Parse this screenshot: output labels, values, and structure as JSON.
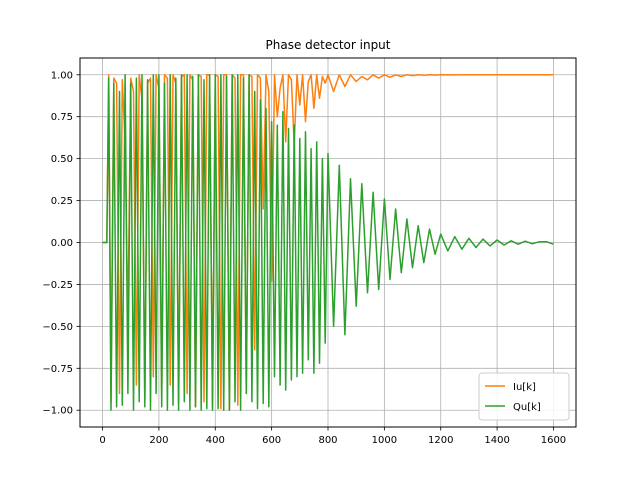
{
  "chart_data": {
    "type": "line",
    "title": "Phase detector input",
    "xlabel": "",
    "ylabel": "",
    "xlim": [
      -80,
      1680
    ],
    "ylim": [
      -1.1,
      1.1
    ],
    "xticks": [
      0,
      200,
      400,
      600,
      800,
      1000,
      1200,
      1400,
      1600
    ],
    "xtick_labels": [
      "0",
      "200",
      "400",
      "600",
      "800",
      "1000",
      "1200",
      "1400",
      "1600"
    ],
    "yticks": [
      -1.0,
      -0.75,
      -0.5,
      -0.25,
      0.0,
      0.25,
      0.5,
      0.75,
      1.0
    ],
    "ytick_labels": [
      "−1.00",
      "−0.75",
      "−0.50",
      "−0.25",
      "0.00",
      "0.25",
      "0.50",
      "0.75",
      "1.00"
    ],
    "grid": true,
    "legend_position": "lower-right",
    "series": [
      {
        "name": "Iu[k]",
        "color": "#ff7f0e",
        "x": [
          0,
          15,
          22,
          30,
          40,
          50,
          60,
          70,
          80,
          90,
          100,
          110,
          120,
          130,
          140,
          150,
          160,
          170,
          180,
          190,
          200,
          210,
          220,
          230,
          240,
          250,
          260,
          270,
          280,
          290,
          300,
          310,
          320,
          330,
          340,
          350,
          360,
          370,
          380,
          390,
          400,
          410,
          420,
          430,
          440,
          450,
          460,
          470,
          480,
          490,
          500,
          510,
          520,
          530,
          540,
          550,
          560,
          570,
          580,
          590,
          600,
          610,
          620,
          630,
          640,
          650,
          660,
          670,
          680,
          690,
          700,
          710,
          720,
          730,
          740,
          750,
          760,
          770,
          780,
          790,
          800,
          820,
          840,
          860,
          880,
          900,
          920,
          940,
          960,
          980,
          1000,
          1020,
          1040,
          1060,
          1080,
          1100,
          1120,
          1140,
          1160,
          1180,
          1200,
          1250,
          1300,
          1350,
          1400,
          1450,
          1500,
          1550,
          1600
        ],
        "y": [
          0.0,
          0.0,
          1.0,
          -0.95,
          0.98,
          0.95,
          -0.9,
          0.97,
          0.6,
          -0.5,
          0.98,
          0.9,
          -0.85,
          1.0,
          0.85,
          -0.95,
          0.95,
          0.98,
          -0.8,
          1.0,
          0.92,
          -0.9,
          1.0,
          0.98,
          -0.85,
          1.0,
          0.95,
          -0.95,
          0.99,
          1.0,
          -0.9,
          1.0,
          0.97,
          -0.98,
          1.0,
          0.99,
          -0.95,
          1.0,
          1.0,
          -0.98,
          1.0,
          0.99,
          -0.99,
          1.0,
          1.0,
          -1.0,
          1.0,
          0.98,
          -0.97,
          1.0,
          1.0,
          -0.9,
          1.0,
          0.99,
          -0.64,
          1.0,
          0.98,
          0.2,
          1.0,
          0.9,
          -0.23,
          1.0,
          0.75,
          0.92,
          1.0,
          0.6,
          1.0,
          0.97,
          0.58,
          1.0,
          0.82,
          1.0,
          0.72,
          0.96,
          1.0,
          0.8,
          1.0,
          0.86,
          0.99,
          0.95,
          1.0,
          0.9,
          1.0,
          0.93,
          1.0,
          0.96,
          0.99,
          0.97,
          1.0,
          0.98,
          1.0,
          0.985,
          1.0,
          0.99,
          1.0,
          0.995,
          1.0,
          0.997,
          1.0,
          0.998,
          1.0,
          0.999,
          1.0,
          1.0,
          1.0,
          1.0,
          1.0,
          1.0,
          1.0
        ]
      },
      {
        "name": "Qu[k]",
        "color": "#2ca02c",
        "x": [
          0,
          15,
          22,
          30,
          40,
          50,
          60,
          70,
          80,
          90,
          100,
          110,
          120,
          130,
          140,
          150,
          160,
          170,
          180,
          190,
          200,
          210,
          220,
          230,
          240,
          250,
          260,
          270,
          280,
          290,
          300,
          310,
          320,
          330,
          340,
          350,
          360,
          370,
          380,
          390,
          400,
          410,
          420,
          430,
          440,
          450,
          460,
          470,
          480,
          490,
          500,
          510,
          520,
          530,
          540,
          550,
          560,
          570,
          580,
          590,
          600,
          610,
          620,
          630,
          640,
          650,
          660,
          670,
          680,
          690,
          700,
          710,
          720,
          730,
          740,
          750,
          760,
          770,
          780,
          790,
          800,
          820,
          840,
          860,
          880,
          900,
          920,
          940,
          960,
          980,
          1000,
          1020,
          1040,
          1060,
          1080,
          1100,
          1120,
          1140,
          1160,
          1180,
          1200,
          1225,
          1250,
          1275,
          1300,
          1325,
          1350,
          1375,
          1400,
          1425,
          1450,
          1475,
          1500,
          1525,
          1550,
          1575,
          1600
        ],
        "y": [
          0.0,
          0.0,
          0.98,
          -1.0,
          0.95,
          -0.98,
          0.9,
          -0.97,
          1.0,
          -0.9,
          0.95,
          -1.0,
          0.98,
          -0.95,
          1.0,
          -0.98,
          0.97,
          -1.0,
          1.0,
          -0.9,
          1.0,
          -0.98,
          0.95,
          -1.0,
          1.0,
          -0.97,
          0.98,
          -1.0,
          1.0,
          -0.95,
          1.0,
          -1.0,
          0.99,
          -0.98,
          1.0,
          -1.0,
          0.97,
          -0.99,
          1.0,
          -1.0,
          1.0,
          -0.99,
          1.0,
          -1.0,
          0.99,
          -1.0,
          1.0,
          -0.95,
          1.0,
          -1.0,
          0.98,
          -0.9,
          1.0,
          -0.95,
          0.9,
          -0.99,
          0.85,
          -0.96,
          0.8,
          -0.98,
          0.72,
          -0.8,
          0.7,
          -0.85,
          0.78,
          -0.88,
          0.68,
          -0.82,
          0.7,
          -0.8,
          0.62,
          -0.78,
          0.66,
          -0.7,
          0.56,
          -0.78,
          0.6,
          -0.72,
          0.5,
          -0.6,
          0.53,
          -0.5,
          0.46,
          -0.55,
          0.38,
          -0.38,
          0.35,
          -0.3,
          0.3,
          -0.28,
          0.26,
          -0.22,
          0.2,
          -0.18,
          0.14,
          -0.15,
          0.1,
          -0.12,
          0.08,
          -0.07,
          0.05,
          -0.05,
          0.035,
          -0.04,
          0.025,
          -0.03,
          0.02,
          -0.02,
          0.015,
          -0.015,
          0.01,
          -0.01,
          0.008,
          -0.008,
          0.005,
          0.005,
          -0.01
        ]
      }
    ]
  }
}
